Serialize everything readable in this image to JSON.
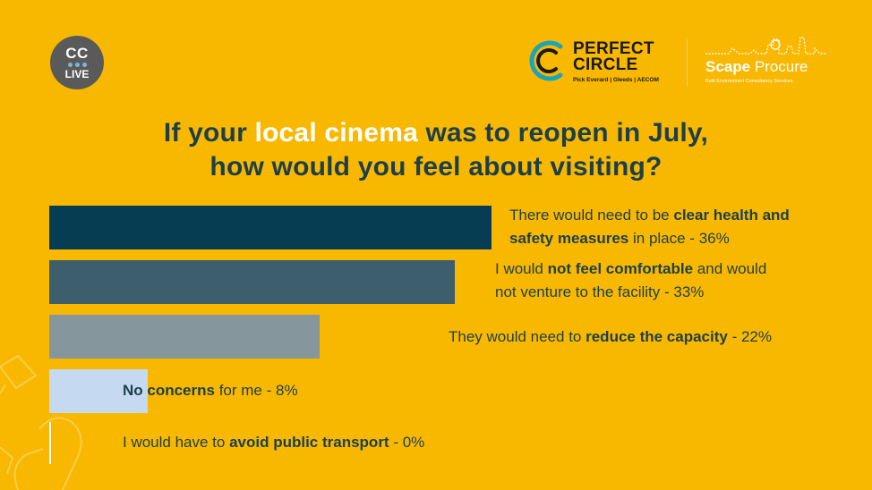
{
  "badge": {
    "top": "CC",
    "bottom": "LIVE"
  },
  "logos": {
    "perfect_circle": {
      "line1": "PERFECT",
      "line2": "CIRCLE",
      "partners": "Pick Everard | Gleeds | AECOM"
    },
    "scape": {
      "name_bold": "Scape",
      "name_light": "Procure",
      "tagline": "Built Environment Consultancy Services"
    }
  },
  "title": {
    "part1": "If your ",
    "highlight": "local cinema",
    "part2": " was to reopen in July,",
    "line2": "how would you feel about visiting?"
  },
  "chart_data": {
    "type": "bar",
    "orientation": "horizontal",
    "title": "If your local cinema was to reopen in July, how would you feel about visiting?",
    "categories": [
      "There would need to be clear health and safety measures in place",
      "I would not feel comfortable and would not venture to the facility",
      "They would need to reduce the capacity",
      "No concerns for me",
      "I would have to avoid public transport"
    ],
    "values": [
      36,
      33,
      22,
      8,
      0
    ],
    "unit": "%",
    "colors": [
      "#073D52",
      "#3D5F6D",
      "#85969C",
      "#C5D9F0",
      "#FFFFFF"
    ],
    "grid": false,
    "legend": "none"
  },
  "labels": [
    {
      "pre": "There would need to be ",
      "bold": "clear health and",
      "mid": "",
      "line2_bold": "safety measures",
      "post": " in place - 36%"
    },
    {
      "pre": "I would ",
      "bold": "not feel comfortable",
      "mid": " and would",
      "line2_bold": "",
      "post": "not venture to the facility - 33%"
    },
    {
      "pre": "They would need to ",
      "bold": "reduce the capacity",
      "mid": "",
      "line2_bold": "",
      "post": " - 22%"
    },
    {
      "pre": "",
      "bold": "No concerns",
      "mid": "",
      "line2_bold": "",
      "post": " for me - 8%"
    },
    {
      "pre": "I would have to ",
      "bold": "avoid public transport",
      "mid": "",
      "line2_bold": "",
      "post": " - 0%"
    }
  ]
}
